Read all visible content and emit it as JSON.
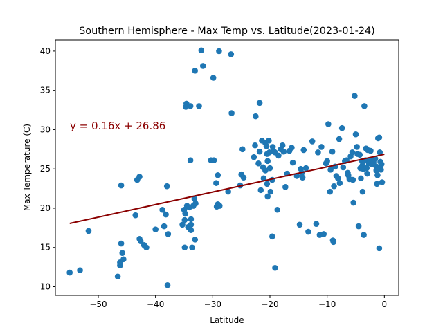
{
  "chart_data": {
    "type": "scatter",
    "title": "Southern Hemisphere - Max Temp vs. Latitude(2023-01-24)",
    "xlabel": "Latitude",
    "ylabel": "Max Temperature (C)",
    "xlim": [
      -57.5,
      2.5
    ],
    "ylim": [
      8.9,
      41.4
    ],
    "xticks": [
      -50,
      -40,
      -30,
      -20,
      -10,
      0
    ],
    "yticks": [
      10,
      15,
      20,
      25,
      30,
      35,
      40
    ],
    "xtick_labels": [
      "−50",
      "−40",
      "−30",
      "−20",
      "−10",
      "0"
    ],
    "ytick_labels": [
      "10",
      "15",
      "20",
      "25",
      "30",
      "35",
      "40"
    ],
    "grid": false,
    "point_color": "#1f77b4",
    "regression": {
      "slope": 0.16,
      "intercept": 26.86,
      "x_range": [
        -55,
        0
      ],
      "color": "#8b0000",
      "equation_label": "y = 0.16x + 26.86",
      "label_color": "#8b0000"
    },
    "series": [
      {
        "points": [
          [
            -55,
            11.8
          ],
          [
            -53.2,
            12.1
          ],
          [
            -51.7,
            17.1
          ],
          [
            -46.6,
            11.3
          ],
          [
            -46.2,
            12.7
          ],
          [
            -46.2,
            13.1
          ],
          [
            -46,
            15.5
          ],
          [
            -45.8,
            14.3
          ],
          [
            -45.6,
            13.5
          ],
          [
            -46,
            22.9
          ],
          [
            -43.5,
            19.1
          ],
          [
            -43.2,
            23.6
          ],
          [
            -42.8,
            24
          ],
          [
            -42.8,
            16.1
          ],
          [
            -42.6,
            15.8
          ],
          [
            -42,
            15.3
          ],
          [
            -41.6,
            15
          ],
          [
            -40,
            17.3
          ],
          [
            -38.8,
            19.8
          ],
          [
            -38.5,
            17.7
          ],
          [
            -38.2,
            19.2
          ],
          [
            -38,
            22.8
          ],
          [
            -37.8,
            16.7
          ],
          [
            -37.9,
            10.2
          ],
          [
            -35.3,
            17.9
          ],
          [
            -35,
            19.8
          ],
          [
            -34.8,
            19.3
          ],
          [
            -34.5,
            20.3
          ],
          [
            -34.9,
            18.5
          ],
          [
            -34.6,
            33.3
          ],
          [
            -34.7,
            32.9
          ],
          [
            -34.3,
            17.6
          ],
          [
            -34.1,
            20.1
          ],
          [
            -33.8,
            18.6
          ],
          [
            -33.6,
            15
          ],
          [
            -33.8,
            17.2
          ],
          [
            -33.8,
            17.9
          ],
          [
            -33.4,
            20.3
          ],
          [
            -33.2,
            21.2
          ],
          [
            -33,
            20.6
          ],
          [
            -33.1,
            16
          ],
          [
            -33.1,
            37.5
          ],
          [
            -32.4,
            33
          ],
          [
            -33.9,
            33
          ],
          [
            -34.9,
            15
          ],
          [
            -32,
            40.1
          ],
          [
            -31.7,
            38.1
          ],
          [
            -33.9,
            26.1
          ],
          [
            -30.3,
            26.1
          ],
          [
            -29.8,
            26.1
          ],
          [
            -29.9,
            36.6
          ],
          [
            -29.3,
            20.2
          ],
          [
            -29.1,
            20.5
          ],
          [
            -28.8,
            20.3
          ],
          [
            -29.1,
            24.2
          ],
          [
            -28.9,
            40
          ],
          [
            -29.4,
            23.2
          ],
          [
            -27.3,
            22.1
          ],
          [
            -26.8,
            39.6
          ],
          [
            -26.7,
            32.1
          ],
          [
            -25.2,
            22.9
          ],
          [
            -25,
            24.3
          ],
          [
            -24.8,
            27.5
          ],
          [
            -24.6,
            23.9
          ],
          [
            -22.8,
            26.5
          ],
          [
            -22.6,
            28
          ],
          [
            -22.5,
            31.7
          ],
          [
            -22,
            25.7
          ],
          [
            -21.8,
            33.4
          ],
          [
            -21.6,
            22.3
          ],
          [
            -21.8,
            27.2
          ],
          [
            -21.4,
            28.6
          ],
          [
            -21.2,
            25.2
          ],
          [
            -21.1,
            23.8
          ],
          [
            -20.8,
            28.3
          ],
          [
            -20.8,
            24.8
          ],
          [
            -20.6,
            27.9
          ],
          [
            -20.5,
            26.9
          ],
          [
            -20.4,
            26
          ],
          [
            -20.5,
            23.1
          ],
          [
            -20.4,
            21.5
          ],
          [
            -20.2,
            28.6
          ],
          [
            -20.1,
            27.1
          ],
          [
            -20,
            25.1
          ],
          [
            -19.9,
            22.1
          ],
          [
            -19.6,
            23.6
          ],
          [
            -19.6,
            16.4
          ],
          [
            -19.4,
            27.3
          ],
          [
            -19.1,
            27.1
          ],
          [
            -19.5,
            27.8
          ],
          [
            -19.1,
            12.4
          ],
          [
            -18.7,
            19.8
          ],
          [
            -18.5,
            26.7
          ],
          [
            -18.1,
            27.5
          ],
          [
            -17.8,
            28
          ],
          [
            -17.6,
            27.2
          ],
          [
            -17.3,
            22.7
          ],
          [
            -17,
            24.4
          ],
          [
            -16.6,
            27.3
          ],
          [
            -16.2,
            27.7
          ],
          [
            -16,
            25.8
          ],
          [
            -15.3,
            24.1
          ],
          [
            -14.8,
            17.9
          ],
          [
            -14.6,
            25
          ],
          [
            -14.4,
            24.5
          ],
          [
            -14.3,
            23.9
          ],
          [
            -14.1,
            27.4
          ],
          [
            -13.7,
            25.1
          ],
          [
            -13.3,
            17
          ],
          [
            -12.6,
            28.5
          ],
          [
            -11.9,
            18
          ],
          [
            -11.6,
            27.1
          ],
          [
            -11.3,
            16.6
          ],
          [
            -11,
            27.8
          ],
          [
            -10.6,
            16.7
          ],
          [
            -10.2,
            25.7
          ],
          [
            -10,
            26
          ],
          [
            -9.8,
            30.7
          ],
          [
            -9.5,
            22.1
          ],
          [
            -9.4,
            24.9
          ],
          [
            -9.1,
            27.2
          ],
          [
            -9,
            15.9
          ],
          [
            -8.9,
            15.7
          ],
          [
            -8.8,
            22.8
          ],
          [
            -8.6,
            25.3
          ],
          [
            -8.4,
            24.1
          ],
          [
            -8.1,
            23.8
          ],
          [
            -7.9,
            28.8
          ],
          [
            -7.8,
            23.2
          ],
          [
            -7.4,
            30.2
          ],
          [
            -7.2,
            25.2
          ],
          [
            -6.9,
            26
          ],
          [
            -6.6,
            26.1
          ],
          [
            -6.4,
            24.5
          ],
          [
            -6.3,
            24.2
          ],
          [
            -6.1,
            23.7
          ],
          [
            -5.9,
            26.6
          ],
          [
            -5.6,
            27.1
          ],
          [
            -5.5,
            23.6
          ],
          [
            -5.4,
            20.7
          ],
          [
            -5.2,
            34.3
          ],
          [
            -5,
            29.4
          ],
          [
            -4.8,
            27.8
          ],
          [
            -4.7,
            26.9
          ],
          [
            -4.5,
            17.7
          ],
          [
            -4.3,
            26.8
          ],
          [
            -4.1,
            23.8
          ],
          [
            -3.9,
            26
          ],
          [
            -3.8,
            25.5
          ],
          [
            -3.7,
            25
          ],
          [
            -3.6,
            16.6
          ],
          [
            -3.5,
            33
          ],
          [
            -3.3,
            26.1
          ],
          [
            -3.2,
            27.6
          ],
          [
            -3.1,
            25.1
          ],
          [
            -3,
            24.4
          ],
          [
            -2.9,
            27.4
          ],
          [
            -2.7,
            25.7
          ],
          [
            -2.5,
            26.1
          ],
          [
            -2.4,
            27.3
          ],
          [
            -2.2,
            25.6
          ],
          [
            -2,
            25.9
          ],
          [
            -1.8,
            26.2
          ],
          [
            -1.6,
            26.3
          ],
          [
            -1.4,
            25.3
          ],
          [
            -1.3,
            23.1
          ],
          [
            -1.2,
            24.2
          ],
          [
            -1.1,
            28.9
          ],
          [
            -0.9,
            29
          ],
          [
            -0.8,
            27.1
          ],
          [
            -0.7,
            25.9
          ],
          [
            -0.6,
            24.9
          ],
          [
            -0.5,
            25.6
          ],
          [
            -0.4,
            23.3
          ],
          [
            -0.9,
            14.9
          ],
          [
            -1.4,
            24.8
          ],
          [
            -0.8,
            25.1
          ],
          [
            -3.8,
            22.1
          ],
          [
            -4.2,
            25.1
          ],
          [
            -1.9,
            25.8
          ]
        ]
      }
    ]
  }
}
